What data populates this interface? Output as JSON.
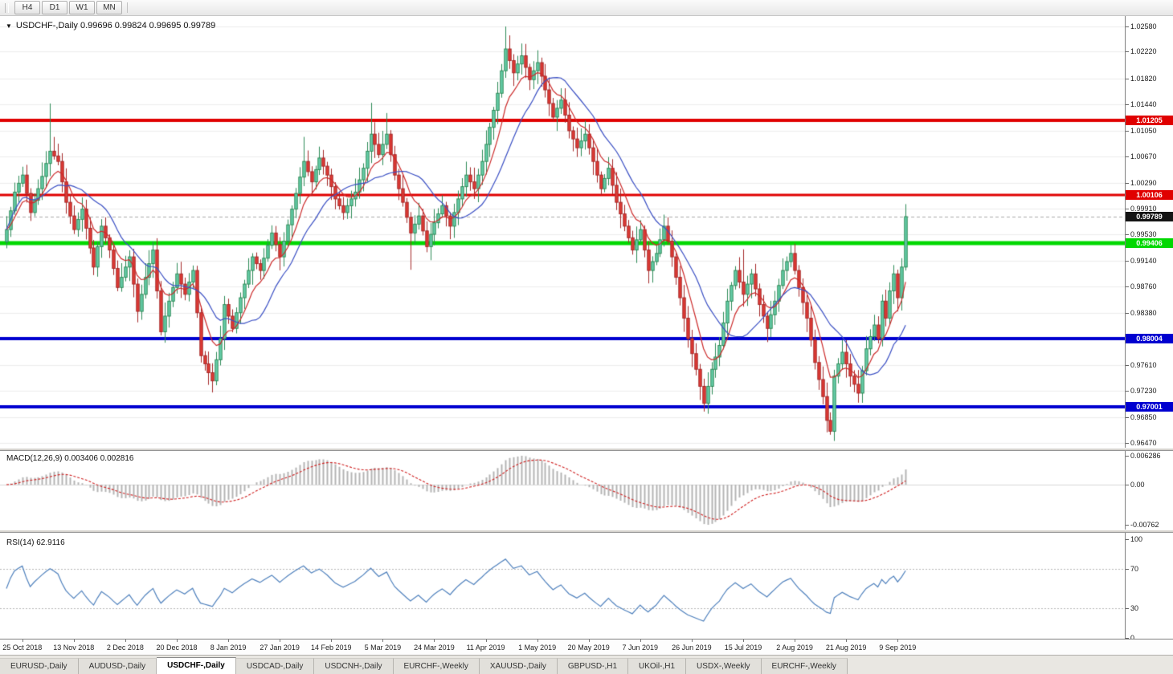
{
  "toolbar": {
    "timeframes": [
      "H4",
      "D1",
      "W1",
      "MN"
    ]
  },
  "chart": {
    "title": "USDCHF-,Daily 0.99696 0.99824 0.99695 0.99789",
    "symbol": "USDCHF-,Daily",
    "ohlc": {
      "open": "0.99696",
      "high": "0.99824",
      "low": "0.99695",
      "close": "0.99789"
    }
  },
  "price_axis": {
    "ticks": [
      "1.02580",
      "1.02220",
      "1.01820",
      "1.01440",
      "1.01050",
      "1.00670",
      "1.00290",
      "0.99910",
      "0.99530",
      "0.99140",
      "0.98760",
      "0.98380",
      "0.97610",
      "0.97230",
      "0.96850",
      "0.96470"
    ],
    "current_price": {
      "label": "0.99789",
      "bg": "#141414",
      "fg": "#ffffff"
    }
  },
  "levels": [
    {
      "label": "1.01205",
      "value": 1.01205,
      "color": "#e00000",
      "width": 4
    },
    {
      "label": "1.00106",
      "value": 1.00106,
      "color": "#e00000",
      "width": 3
    },
    {
      "label": "0.99406",
      "value": 0.99406,
      "color": "#00d800",
      "width": 5
    },
    {
      "label": "0.98004",
      "value": 0.98004,
      "color": "#0000d0",
      "width": 4
    },
    {
      "label": "0.97001",
      "value": 0.97001,
      "color": "#0000d0",
      "width": 4
    }
  ],
  "macd": {
    "label": "MACD(12,26,9) 0.003406 0.002816",
    "axis": [
      "0.006286",
      "0.00",
      "-0.00762"
    ]
  },
  "rsi": {
    "label": "RSI(14) 62.9116",
    "axis": [
      "100",
      "70",
      "30",
      "0"
    ],
    "levels": [
      70,
      30
    ]
  },
  "date_axis": [
    "25 Oct 2018",
    "13 Nov 2018",
    "2 Dec 2018",
    "20 Dec 2018",
    "8 Jan 2019",
    "27 Jan 2019",
    "14 Feb 2019",
    "5 Mar 2019",
    "24 Mar 2019",
    "11 Apr 2019",
    "1 May 2019",
    "20 May 2019",
    "7 Jun 2019",
    "26 Jun 2019",
    "15 Jul 2019",
    "2 Aug 2019",
    "21 Aug 2019",
    "9 Sep 2019"
  ],
  "tabs": [
    {
      "label": "EURUSD-,Daily"
    },
    {
      "label": "AUDUSD-,Daily"
    },
    {
      "label": "USDCHF-,Daily",
      "active": true
    },
    {
      "label": "USDCAD-,Daily"
    },
    {
      "label": "USDCNH-,Daily"
    },
    {
      "label": "EURCHF-,Weekly"
    },
    {
      "label": "XAUUSD-,Daily"
    },
    {
      "label": "GBPUSD-,H1"
    },
    {
      "label": "UKOil-,H1"
    },
    {
      "label": "USDX-,Weekly"
    },
    {
      "label": "EURCHF-,Weekly"
    }
  ],
  "chart_data": {
    "type": "candlestick",
    "symbol": "USDCHF",
    "timeframe": "Daily",
    "title": "USDCHF Daily with MACD(12,26,9) and RSI(14)",
    "price_range": [
      0.9647,
      1.0258
    ],
    "x_range": [
      "25 Oct 2018",
      "20 Sep 2019"
    ],
    "closes": [
      0.996,
      0.99875,
      1.0015,
      1.0028,
      1.004,
      1.0013,
      0.9985,
      1.0003,
      1.002,
      1.0038,
      1.0057,
      1.0075,
      1.0068,
      1.006,
      1.003,
      1.0,
      0.998,
      0.996,
      0.9975,
      0.999,
      0.9962,
      0.9933,
      0.9905,
      0.9935,
      0.9965,
      0.9948,
      0.993,
      0.9903,
      0.9875,
      0.989,
      0.9905,
      0.992,
      0.988,
      0.984,
      0.9865,
      0.989,
      0.991,
      0.993,
      0.987,
      0.981,
      0.9833,
      0.9855,
      0.9875,
      0.9895,
      0.988,
      0.9865,
      0.9883,
      0.99,
      0.9838,
      0.9775,
      0.9763,
      0.975,
      0.9738,
      0.9769,
      0.98,
      0.985,
      0.9833,
      0.9815,
      0.9838,
      0.986,
      0.988,
      0.99,
      0.992,
      0.991,
      0.99,
      0.9918,
      0.9937,
      0.9955,
      0.9938,
      0.992,
      0.9943,
      0.9967,
      0.999,
      1.0013,
      1.0037,
      1.006,
      1.0045,
      1.003,
      1.0048,
      1.0065,
      1.0053,
      1.004,
      1.0023,
      1.0005,
      0.9995,
      0.9985,
      0.9995,
      1.0005,
      1.0015,
      1.0033,
      1.005,
      1.0075,
      1.01,
      1.0085,
      1.007,
      1.0085,
      1.01,
      1.007,
      1.004,
      1.002,
      1.0,
      0.9978,
      0.9955,
      0.9968,
      0.998,
      0.9958,
      0.9935,
      0.9953,
      0.997,
      0.9983,
      0.9995,
      0.998,
      0.9965,
      0.9985,
      1.0005,
      1.0023,
      1.004,
      1.003,
      1.002,
      1.004,
      1.006,
      1.0085,
      1.011,
      1.0135,
      1.016,
      1.0193,
      1.0225,
      1.0208,
      1.019,
      1.0203,
      1.0215,
      1.0198,
      1.018,
      1.0193,
      1.0205,
      1.0185,
      1.0165,
      1.0145,
      1.0125,
      1.0138,
      1.015,
      1.0128,
      1.0105,
      1.0093,
      1.008,
      1.009,
      1.01,
      1.008,
      1.006,
      1.004,
      1.002,
      1.0035,
      1.005,
      1.0025,
      1.0,
      0.9983,
      0.9965,
      0.9948,
      0.993,
      0.9945,
      0.996,
      0.993,
      0.99,
      0.9913,
      0.9925,
      0.9945,
      0.9965,
      0.9943,
      0.992,
      0.989,
      0.986,
      0.983,
      0.98,
      0.9778,
      0.9755,
      0.973,
      0.9705,
      0.973,
      0.9755,
      0.9773,
      0.979,
      0.9823,
      0.9855,
      0.9878,
      0.99,
      0.9883,
      0.9865,
      0.988,
      0.9895,
      0.9873,
      0.985,
      0.9833,
      0.9815,
      0.9835,
      0.9855,
      0.9878,
      0.99,
      0.9913,
      0.9925,
      0.99,
      0.9875,
      0.9853,
      0.983,
      0.9798,
      0.9765,
      0.974,
      0.9715,
      0.968,
      0.9664,
      0.9745,
      0.9763,
      0.978,
      0.9763,
      0.9745,
      0.9733,
      0.972,
      0.9753,
      0.9785,
      0.9803,
      0.982,
      0.98,
      0.9855,
      0.983,
      0.987,
      0.9895,
      0.986,
      0.9905,
      0.9979
    ],
    "spikes": {
      "11": {
        "h": 1.0145
      },
      "52": {
        "l": 0.9721
      },
      "75": {
        "h": 1.0096
      },
      "92": {
        "h": 1.0146
      },
      "96": {
        "h": 1.0131
      },
      "102": {
        "l": 0.9901
      },
      "126": {
        "h": 1.0258
      },
      "176": {
        "l": 0.9693
      },
      "186": {
        "h": 0.9931
      },
      "208": {
        "l": 0.9659
      },
      "215": {
        "l": 0.9706
      }
    },
    "colors": {
      "up": "#66cdaa",
      "up_border": "#2e8b57",
      "down": "#e03a34",
      "down_border": "#a52a2a",
      "ma_fast_red": "#cc2a2a",
      "ma_slow_blue": "#3a4fc4",
      "macd_hist": "#b4b4b4",
      "macd_signal": "#d02020",
      "rsi_line": "#4f81bd",
      "grid": "#ededed",
      "level_red": "#e00000",
      "level_green": "#00d800",
      "level_blue": "#0000d0"
    }
  }
}
